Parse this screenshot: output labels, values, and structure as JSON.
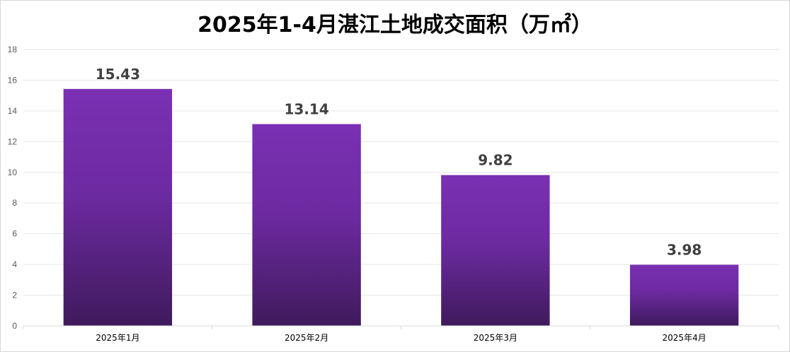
{
  "chart_data": {
    "type": "bar",
    "title": "2025年1-4月湛江土地成交面积（万㎡）",
    "categories": [
      "2025年1月",
      "2025年2月",
      "2025年3月",
      "2025年4月"
    ],
    "values": [
      15.43,
      13.14,
      9.82,
      3.98
    ],
    "data_labels": [
      "15.43",
      "13.14",
      "9.82",
      "3.98"
    ],
    "ylim": [
      0,
      18
    ],
    "yticks": [
      0,
      2,
      4,
      6,
      8,
      10,
      12,
      14,
      16,
      18
    ],
    "grid": true,
    "legend": "none",
    "colors": {
      "bar_top": "#7b30b3",
      "bar_bottom": "#3f1a5c",
      "grid": "#e6e6e6",
      "label": "#404040"
    }
  }
}
